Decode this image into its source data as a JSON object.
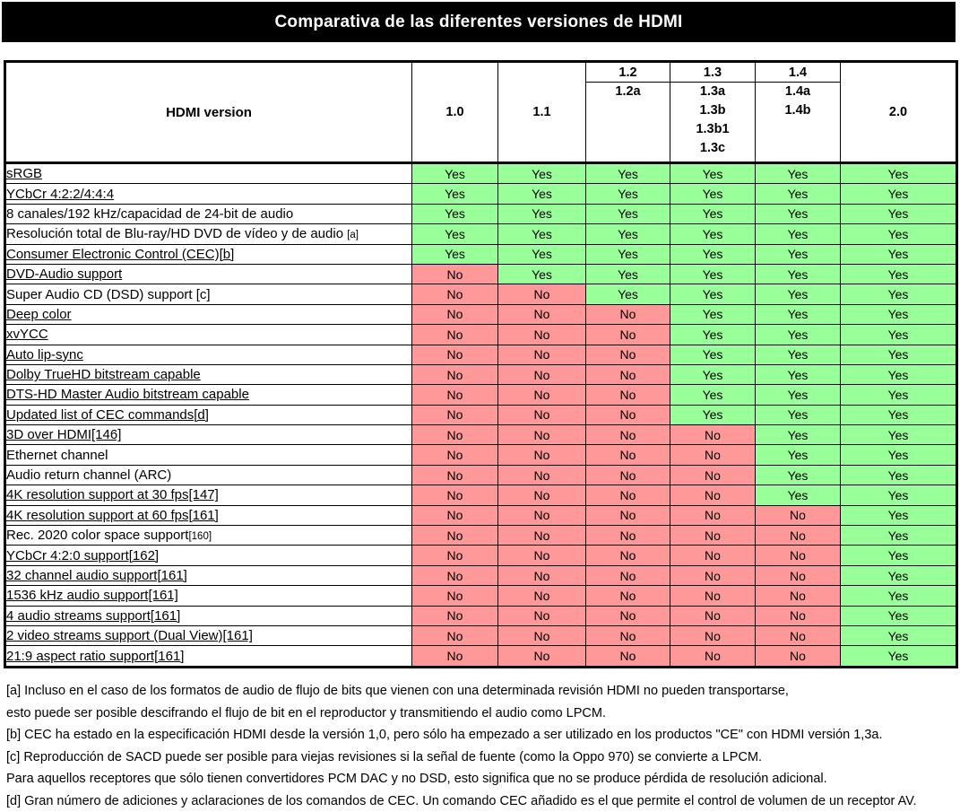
{
  "title": "Comparativa de las diferentes versiones de HDMI",
  "colors": {
    "yes": "#99FF99",
    "no": "#FF9999"
  },
  "table": {
    "header": {
      "label": "HDMI version",
      "columns": [
        {
          "main": "1.0",
          "subs": []
        },
        {
          "main": "1.1",
          "subs": []
        },
        {
          "main": "1.2",
          "subs": [
            "1.2a"
          ]
        },
        {
          "main": "1.3",
          "subs": [
            "1.3a",
            "1.3b",
            "1.3b1",
            "1.3c"
          ]
        },
        {
          "main": "1.4",
          "subs": [
            "1.4a",
            "1.4b"
          ]
        },
        {
          "main": "2.0",
          "subs": []
        }
      ]
    },
    "rows": [
      {
        "feature": "sRGB",
        "link": true,
        "suffix": "",
        "values": [
          "Yes",
          "Yes",
          "Yes",
          "Yes",
          "Yes",
          "Yes"
        ]
      },
      {
        "feature": "YCbCr 4:2:2/4:4:4",
        "link": true,
        "suffix": "",
        "values": [
          "Yes",
          "Yes",
          "Yes",
          "Yes",
          "Yes",
          "Yes"
        ]
      },
      {
        "feature": "8 canales/192 kHz/capacidad de 24-bit de audio",
        "link": false,
        "suffix": "",
        "values": [
          "Yes",
          "Yes",
          "Yes",
          "Yes",
          "Yes",
          "Yes"
        ]
      },
      {
        "feature": "Resolución total de Blu-ray/HD DVD de vídeo y de audio ",
        "link": false,
        "suffix": "[a]",
        "values": [
          "Yes",
          "Yes",
          "Yes",
          "Yes",
          "Yes",
          "Yes"
        ]
      },
      {
        "feature": "Consumer Electronic Control (CEC)[b]",
        "link": true,
        "suffix": "",
        "values": [
          "Yes",
          "Yes",
          "Yes",
          "Yes",
          "Yes",
          "Yes"
        ]
      },
      {
        "feature": "DVD-Audio support",
        "link": true,
        "suffix": "",
        "values": [
          "No",
          "Yes",
          "Yes",
          "Yes",
          "Yes",
          "Yes"
        ]
      },
      {
        "feature": "Super Audio CD (DSD) support [c]",
        "link": false,
        "suffix": "",
        "values": [
          "No",
          "No",
          "Yes",
          "Yes",
          "Yes",
          "Yes"
        ]
      },
      {
        "feature": "Deep color",
        "link": true,
        "suffix": "",
        "values": [
          "No",
          "No",
          "No",
          "Yes",
          "Yes",
          "Yes"
        ]
      },
      {
        "feature": "xvYCC",
        "link": true,
        "suffix": "",
        "values": [
          "No",
          "No",
          "No",
          "Yes",
          "Yes",
          "Yes"
        ]
      },
      {
        "feature": "Auto lip-sync",
        "link": true,
        "suffix": "",
        "values": [
          "No",
          "No",
          "No",
          "Yes",
          "Yes",
          "Yes"
        ]
      },
      {
        "feature": "Dolby TrueHD bitstream capable",
        "link": true,
        "suffix": "",
        "values": [
          "No",
          "No",
          "No",
          "Yes",
          "Yes",
          "Yes"
        ]
      },
      {
        "feature": "DTS-HD Master Audio bitstream capable",
        "link": true,
        "suffix": "",
        "values": [
          "No",
          "No",
          "No",
          "Yes",
          "Yes",
          "Yes"
        ]
      },
      {
        "feature": "Updated list of CEC commands[d]",
        "link": true,
        "suffix": "",
        "values": [
          "No",
          "No",
          "No",
          "Yes",
          "Yes",
          "Yes"
        ]
      },
      {
        "feature": "3D over HDMI[146]",
        "link": true,
        "suffix": "",
        "values": [
          "No",
          "No",
          "No",
          "No",
          "Yes",
          "Yes"
        ]
      },
      {
        "feature": "Ethernet channel",
        "link": false,
        "suffix": "",
        "values": [
          "No",
          "No",
          "No",
          "No",
          "Yes",
          "Yes"
        ]
      },
      {
        "feature": "Audio return channel (ARC)",
        "link": false,
        "suffix": "",
        "values": [
          "No",
          "No",
          "No",
          "No",
          "Yes",
          "Yes"
        ]
      },
      {
        "feature": "4K resolution support at 30 fps[147]",
        "link": true,
        "suffix": "",
        "values": [
          "No",
          "No",
          "No",
          "No",
          "Yes",
          "Yes"
        ]
      },
      {
        "feature": "4K resolution support at 60 fps[161]",
        "link": true,
        "suffix": "",
        "values": [
          "No",
          "No",
          "No",
          "No",
          "No",
          "Yes"
        ]
      },
      {
        "feature": "Rec. 2020 color space support",
        "link": false,
        "suffix": "[160]",
        "values": [
          "No",
          "No",
          "No",
          "No",
          "No",
          "Yes"
        ]
      },
      {
        "feature": "YCbCr 4:2:0 support[162]",
        "link": true,
        "suffix": "",
        "values": [
          "No",
          "No",
          "No",
          "No",
          "No",
          "Yes"
        ]
      },
      {
        "feature": "32 channel audio support[161]",
        "link": true,
        "suffix": "",
        "values": [
          "No",
          "No",
          "No",
          "No",
          "No",
          "Yes"
        ]
      },
      {
        "feature": "1536 kHz audio support[161]",
        "link": true,
        "suffix": "",
        "values": [
          "No",
          "No",
          "No",
          "No",
          "No",
          "Yes"
        ]
      },
      {
        "feature": "4 audio streams support[161]",
        "link": true,
        "suffix": "",
        "values": [
          "No",
          "No",
          "No",
          "No",
          "No",
          "Yes"
        ]
      },
      {
        "feature": "2 video streams support (Dual View)[161]",
        "link": true,
        "suffix": "",
        "values": [
          "No",
          "No",
          "No",
          "No",
          "No",
          "Yes"
        ]
      },
      {
        "feature": "21:9 aspect ratio support[161]",
        "link": true,
        "suffix": "",
        "values": [
          "No",
          "No",
          "No",
          "No",
          "No",
          "Yes"
        ]
      }
    ]
  },
  "footnotes": [
    "[a] Incluso en el caso de los formatos de audio de flujo de bits que vienen con una determinada revisión HDMI no pueden transportarse,",
    "esto puede ser posible descifrando el flujo de bit en el reproductor y transmitiendo el audio como LPCM.",
    "[b] CEC ha estado en la especificación HDMI desde la versión 1,0, pero sólo ha empezado a ser utilizado en los productos \"CE\" con HDMI versión 1,3a.",
    "[c] Reproducción de SACD puede ser posible para viejas revisiones si la señal de fuente (como la Oppo 970) se convierte a LPCM.",
    "Para aquellos receptores que sólo tienen convertidores PCM DAC y no DSD, esto significa que no se produce pérdida de resolución adicional.",
    "[d] Gran número de adiciones y aclaraciones de los comandos de CEC. Un comando CEC añadido es el que permite el control de volumen de un receptor AV."
  ]
}
